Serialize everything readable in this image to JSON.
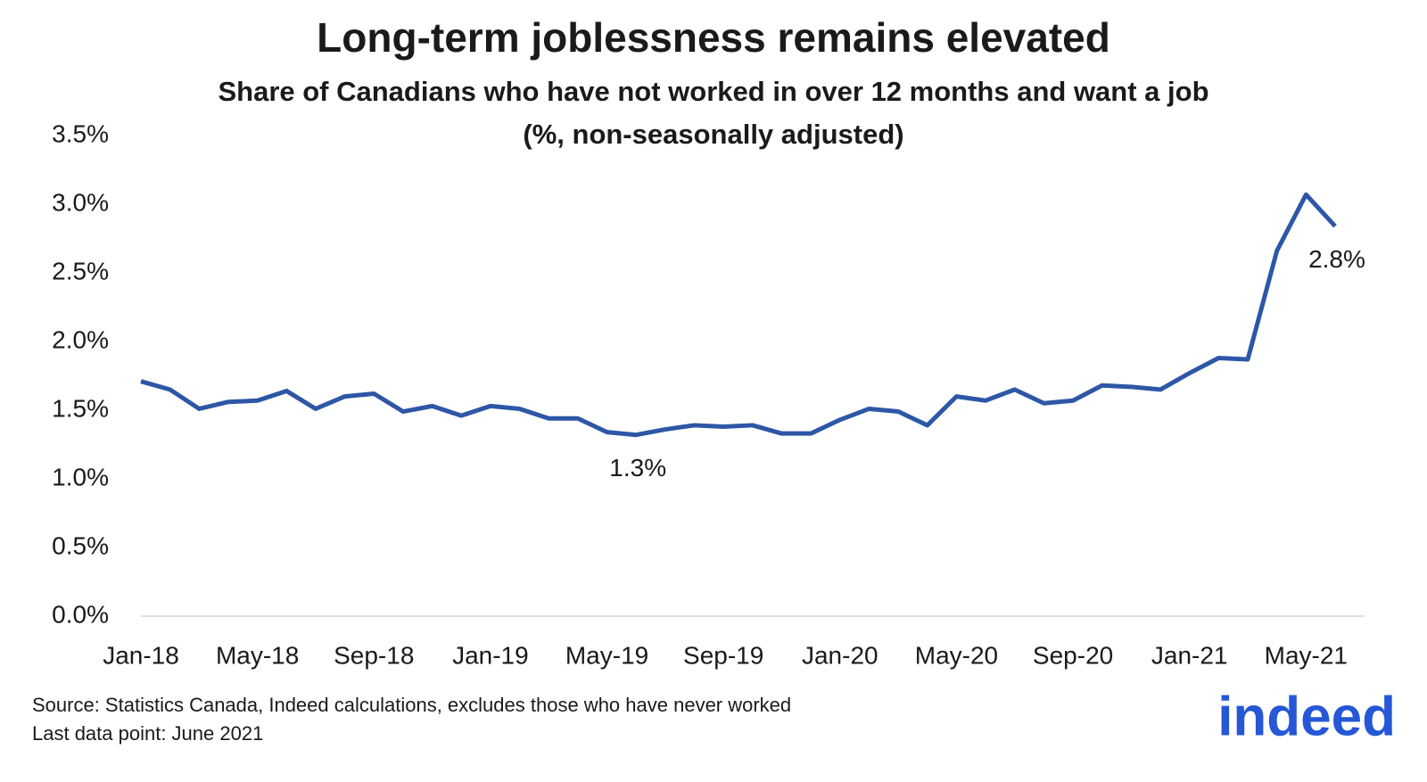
{
  "chart_data": {
    "type": "line",
    "title": "Long-term joblessness remains elevated",
    "subtitle": [
      "Share of Canadians who have not worked in over 12 months and want a job",
      "(%, non-seasonally adjusted)"
    ],
    "categories": [
      "Jan-18",
      null,
      null,
      null,
      "May-18",
      null,
      null,
      null,
      "Sep-18",
      null,
      null,
      null,
      "Jan-19",
      null,
      null,
      null,
      "May-19",
      null,
      null,
      null,
      "Sep-19",
      null,
      null,
      null,
      "Jan-20",
      null,
      null,
      null,
      "May-20",
      null,
      null,
      null,
      "Sep-20",
      null,
      null,
      null,
      "Jan-21",
      null,
      null,
      null,
      "May-21",
      null
    ],
    "series": [
      {
        "name": "Share of Canadians who have not worked in over 12 months and want a job",
        "color": "#2d57a6",
        "values": [
          1.71,
          1.65,
          1.51,
          1.56,
          1.57,
          1.64,
          1.51,
          1.6,
          1.62,
          1.49,
          1.53,
          1.46,
          1.53,
          1.51,
          1.44,
          1.44,
          1.34,
          1.32,
          1.36,
          1.39,
          1.38,
          1.39,
          1.33,
          1.33,
          1.43,
          1.51,
          1.49,
          1.39,
          1.6,
          1.57,
          1.65,
          1.55,
          1.57,
          1.68,
          1.67,
          1.65,
          1.77,
          1.88,
          1.87,
          2.66,
          3.07,
          2.84
        ],
        "value_labels": [
          null,
          null,
          null,
          null,
          null,
          null,
          null,
          null,
          null,
          null,
          null,
          null,
          null,
          null,
          null,
          null,
          null,
          "1.3%",
          null,
          null,
          null,
          null,
          null,
          null,
          null,
          null,
          null,
          null,
          null,
          null,
          null,
          null,
          null,
          null,
          null,
          null,
          null,
          null,
          null,
          null,
          null,
          "2.8%"
        ]
      }
    ],
    "ylim": [
      0,
      3.5
    ],
    "yticks": [
      {
        "value": 0,
        "label": "0.0%"
      },
      {
        "value": 0.5,
        "label": "0.5%"
      },
      {
        "value": 1,
        "label": "1.0%"
      },
      {
        "value": 1.5,
        "label": "1.5%"
      },
      {
        "value": 2,
        "label": "2.0%"
      },
      {
        "value": 2.5,
        "label": "2.5%"
      },
      {
        "value": 3,
        "label": "3.0%"
      },
      {
        "value": 3.5,
        "label": "3.5%"
      }
    ],
    "source": "Source: Statistics Canada, Indeed calculations, excludes those who have never worked",
    "note": "Last data point: June 2021",
    "logo": "indeed"
  }
}
